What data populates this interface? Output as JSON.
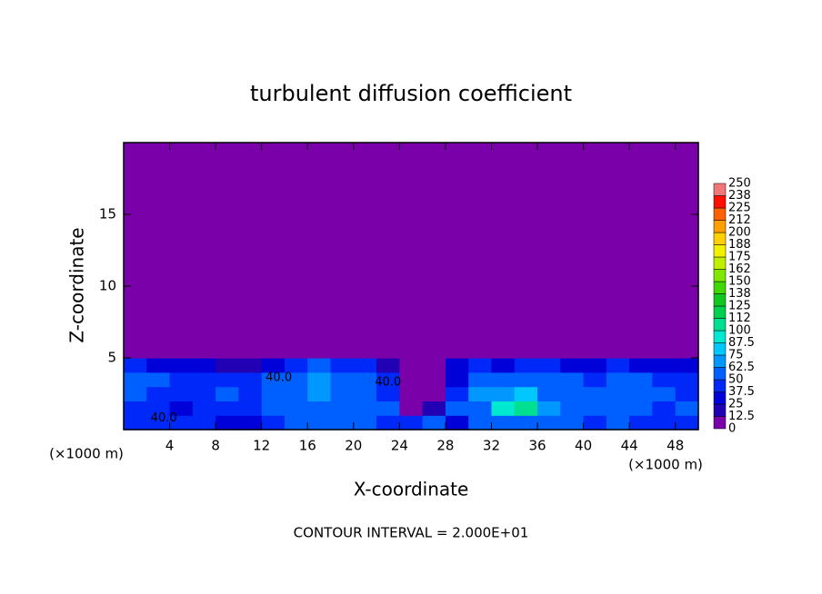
{
  "chart_data": {
    "type": "contour",
    "title": "turbulent diffusion coefficient",
    "x_label": "X-coordinate",
    "y_label": "Z-coordinate",
    "x_unit": "(×1000 m)",
    "footer": "CONTOUR INTERVAL = 2.000E+01",
    "xlim": [
      0,
      50
    ],
    "ylim": [
      0,
      20
    ],
    "xticks": [
      4,
      8,
      12,
      16,
      20,
      24,
      28,
      32,
      36,
      40,
      44,
      48
    ],
    "yticks": [
      5,
      10,
      15
    ],
    "xbins": [
      0,
      2,
      4,
      6,
      8,
      10,
      12,
      14,
      16,
      18,
      20,
      22,
      24,
      26,
      28,
      30,
      32,
      34,
      36,
      38,
      40,
      42,
      44,
      46,
      48,
      50
    ],
    "ybins": [
      0,
      1,
      2,
      3,
      4,
      5,
      6,
      20
    ],
    "z": [
      [
        40,
        45,
        40,
        40,
        35,
        30,
        40,
        50,
        55,
        50,
        60,
        45,
        40,
        50,
        30,
        55,
        60,
        50,
        60,
        55,
        45,
        50,
        45,
        40,
        45
      ],
      [
        45,
        40,
        35,
        40,
        45,
        45,
        50,
        55,
        60,
        60,
        55,
        50,
        5,
        20,
        60,
        60,
        95,
        100,
        70,
        60,
        50,
        55,
        50,
        45,
        50
      ],
      [
        50,
        45,
        40,
        45,
        50,
        40,
        55,
        60,
        65,
        55,
        50,
        45,
        0,
        0,
        40,
        65,
        70,
        75,
        60,
        55,
        50,
        60,
        55,
        50,
        45
      ],
      [
        50,
        50,
        45,
        45,
        40,
        45,
        50,
        60,
        65,
        60,
        55,
        40,
        0,
        0,
        35,
        60,
        55,
        55,
        50,
        55,
        45,
        50,
        55,
        45,
        40
      ],
      [
        40,
        35,
        30,
        30,
        20,
        20,
        35,
        45,
        50,
        45,
        40,
        20,
        0,
        0,
        25,
        40,
        35,
        45,
        40,
        35,
        30,
        40,
        35,
        35,
        30
      ],
      [
        0,
        0,
        0,
        0,
        0,
        0,
        0,
        10,
        5,
        0,
        0,
        0,
        0,
        0,
        10,
        5,
        0,
        0,
        0,
        0,
        0,
        5,
        0,
        0,
        0
      ],
      [
        0,
        0,
        0,
        0,
        0,
        0,
        0,
        0,
        0,
        0,
        0,
        0,
        0,
        0,
        0,
        0,
        0,
        0,
        0,
        0,
        0,
        0,
        0,
        0,
        0
      ]
    ],
    "contour_labels": [
      {
        "value": 40,
        "label": "40.0"
      },
      {
        "value": 40,
        "label": "40.0"
      },
      {
        "value": 40,
        "label": "40.0"
      }
    ],
    "levels": [
      0,
      12.5,
      25,
      37.5,
      50,
      62.5,
      75,
      87.5,
      100,
      112,
      125,
      138,
      150,
      162,
      175,
      188,
      200,
      212,
      225,
      238,
      250
    ],
    "colors": [
      "#7a00aa",
      "#2200b4",
      "#0000d8",
      "#0028f8",
      "#0060ff",
      "#0098ff",
      "#00c8ff",
      "#00e8d0",
      "#00e090",
      "#00d050",
      "#10c820",
      "#40d800",
      "#80e800",
      "#c0f000",
      "#f0f000",
      "#ffd000",
      "#ffa000",
      "#ff6000",
      "#ff1000",
      "#f07878"
    ]
  }
}
